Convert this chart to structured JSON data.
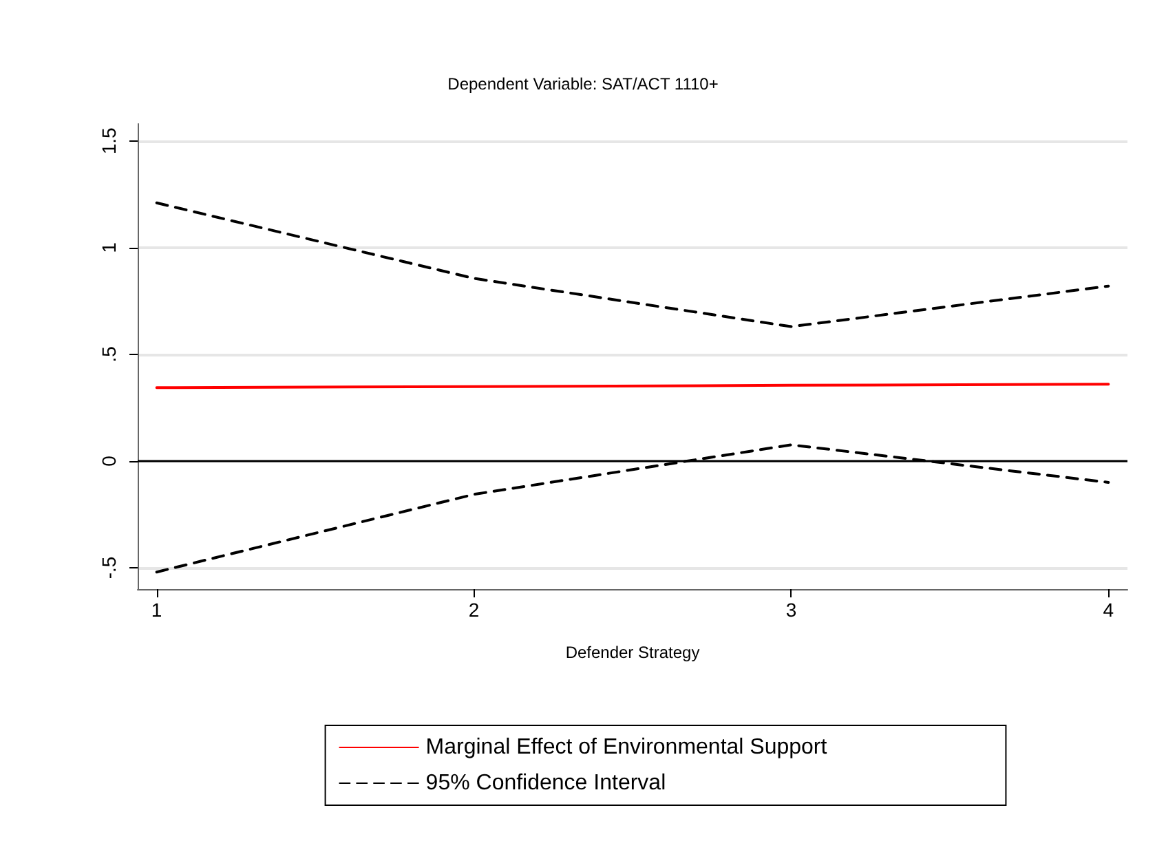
{
  "chart_data": {
    "type": "line",
    "title": "Dependent Variable: SAT/ACT 1110+",
    "xlabel": "Defender Strategy",
    "x": [
      1,
      2,
      3,
      4
    ],
    "series": [
      {
        "name": "Marginal Effect of Environmental Support",
        "color": "#ff0000",
        "values": [
          0.344,
          0.349,
          0.355,
          0.36
        ],
        "line_style": "solid"
      },
      {
        "name": "95% Confidence Interval",
        "color": "#000000",
        "values": [
          1.21,
          0.856,
          0.63,
          0.82
        ],
        "line_style": "dashed"
      },
      {
        "color": "#000000",
        "values": [
          -0.52,
          -0.156,
          0.076,
          -0.1
        ],
        "line_style": "dashed"
      }
    ],
    "xlim": [
      0.94,
      4.06
    ],
    "xticks": [
      1,
      2,
      3,
      4
    ],
    "ylim": [
      -0.6,
      1.58
    ],
    "yticks": [
      {
        "value": -0.5,
        "label": "-.5"
      },
      0,
      {
        "value": 0.5,
        "label": ".5"
      },
      1,
      1.5
    ],
    "ref_lines": [
      {
        "axis": "y",
        "value": 0,
        "color": "#000000"
      }
    ],
    "grid": "y",
    "legend": "bottom",
    "marker": "none"
  }
}
